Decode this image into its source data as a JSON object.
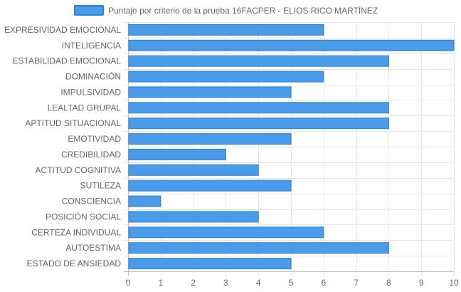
{
  "chart_data": {
    "type": "bar",
    "orientation": "horizontal",
    "legend": {
      "position": "top-center",
      "label": "Puntaje por criterio de la prueba 16FACPER - ELIOS RICO MARTÍNEZ"
    },
    "categories": [
      "EXPRESIVIDAD EMOCIONAL",
      "INTELIGENCIA",
      "ESTABILIDAD EMOCIONAL",
      "DOMINACIÓN",
      "IMPULSIVIDAD",
      "LEALTAD GRUPAL",
      "APTITUD SITUACIONAL",
      "EMOTIVIDAD",
      "CREDIBILIDAD",
      "ACTITUD COGNITIVA",
      "SUTILEZA",
      "CONSCIENCIA",
      "POSICIÓN SOCIAL",
      "CERTEZA INDIVIDUAL",
      "AUTOESTIMA",
      "ESTADO DE ANSIEDAD"
    ],
    "series": [
      {
        "name": "Puntaje por criterio de la prueba 16FACPER - ELIOS RICO MARTÍNEZ",
        "values": [
          6,
          10,
          8,
          6,
          5,
          8,
          8,
          5,
          3,
          4,
          5,
          1,
          4,
          6,
          8,
          5
        ]
      }
    ],
    "xlim": [
      0,
      10
    ],
    "xticks": [
      "0",
      "1",
      "2",
      "3",
      "4",
      "5",
      "6",
      "7",
      "8",
      "9",
      "10"
    ],
    "grid": true,
    "colors": {
      "bar_fill": "#4a9be8",
      "bar_stroke": "#2d7fd9",
      "grid": "#e5e5e5",
      "axis": "#bfbfbf"
    }
  }
}
